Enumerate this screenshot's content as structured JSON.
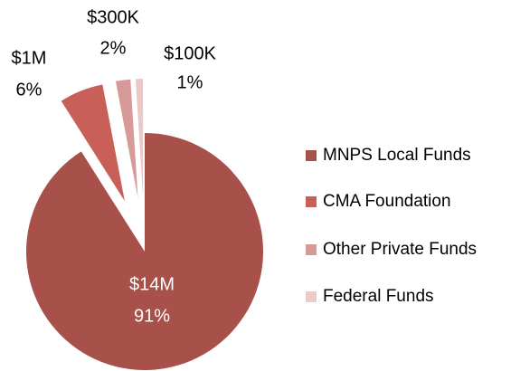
{
  "chart_data": {
    "type": "pie",
    "categories": [
      "MNPS Local Funds",
      "CMA Foundation",
      "Other Private Funds",
      "Federal Funds"
    ],
    "values": [
      91,
      6,
      2,
      1
    ],
    "value_labels": [
      "91%",
      "6%",
      "2%",
      "1%"
    ],
    "amount_labels": [
      "$14M",
      "$1M",
      "$300K",
      "$100K"
    ],
    "colors": [
      "#a8504a",
      "#c85f58",
      "#d89a98",
      "#ebc9c8"
    ],
    "legend": "right"
  }
}
